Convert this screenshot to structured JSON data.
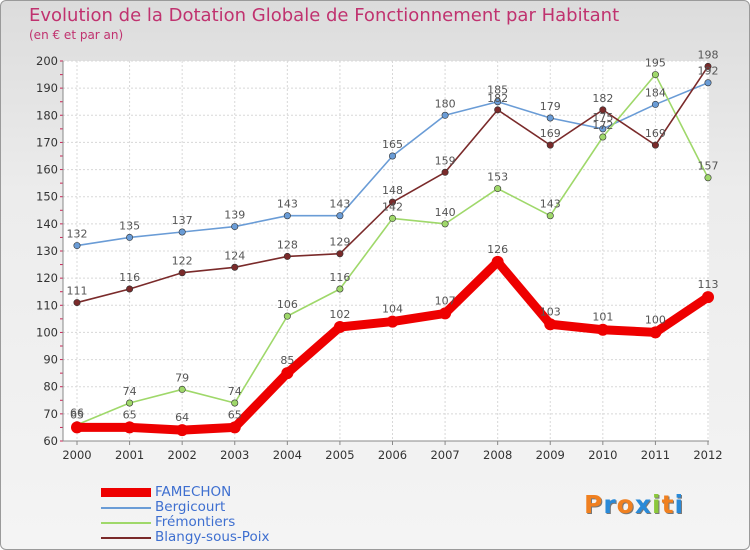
{
  "chart_data": {
    "type": "line",
    "title": "Evolution de la Dotation Globale de Fonctionnement par Habitant",
    "subtitle": "(en € et par an)",
    "xlabel": "",
    "ylabel": "",
    "ylim": [
      60,
      200
    ],
    "yticks": [
      60,
      70,
      80,
      90,
      100,
      110,
      120,
      130,
      140,
      150,
      160,
      170,
      180,
      190,
      200
    ],
    "categories": [
      "2000",
      "2001",
      "2002",
      "2003",
      "2004",
      "2005",
      "2006",
      "2007",
      "2008",
      "2009",
      "2010",
      "2011",
      "2012"
    ],
    "grid": true,
    "legend_position": "bottom-left",
    "series": [
      {
        "name": "FAMECHON",
        "color": "#ee0000",
        "emphasis": true,
        "values": [
          65,
          65,
          64,
          65,
          85,
          102,
          104,
          107,
          126,
          103,
          101,
          100,
          113
        ]
      },
      {
        "name": "Bergicourt",
        "color": "#6a9cd6",
        "values": [
          132,
          135,
          137,
          139,
          143,
          143,
          165,
          180,
          185,
          179,
          175,
          184,
          192
        ]
      },
      {
        "name": "Frémontiers",
        "color": "#9fd86a",
        "values": [
          66,
          74,
          79,
          74,
          106,
          116,
          142,
          140,
          153,
          143,
          172,
          195,
          157
        ]
      },
      {
        "name": "Blangy-sous-Poix",
        "color": "#7a2a2a",
        "values": [
          111,
          116,
          122,
          124,
          128,
          129,
          148,
          159,
          182,
          169,
          182,
          169,
          198
        ]
      }
    ]
  },
  "brand": {
    "logo_letters": [
      "P",
      "r",
      "o",
      "x",
      "i",
      "t",
      "i"
    ],
    "logo_colors": [
      "#f08020",
      "#2a8ad8",
      "#f08020",
      "#2a8ad8",
      "#8cc83c",
      "#f08020",
      "#2a8ad8"
    ]
  }
}
